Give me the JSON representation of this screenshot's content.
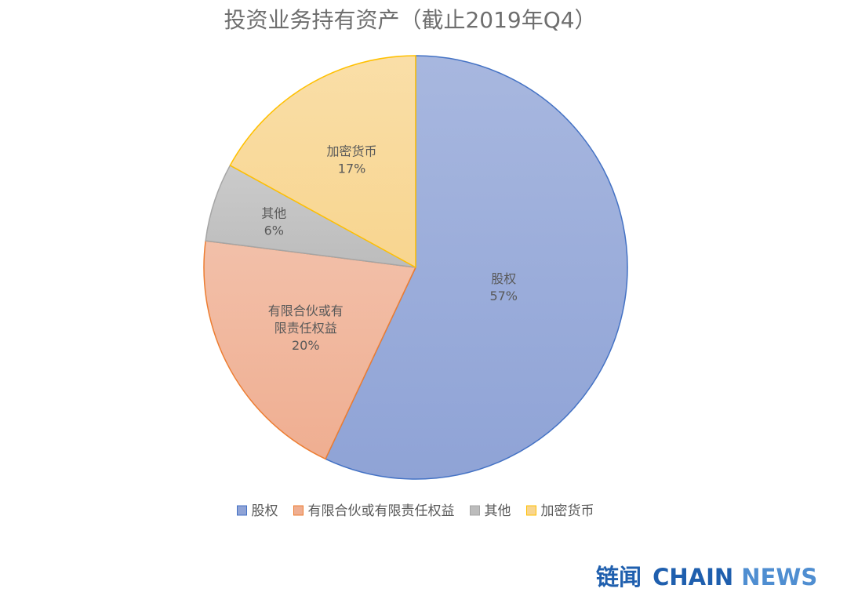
{
  "chart_data": {
    "type": "pie",
    "title": "投资业务持有资产（截止2019年Q4）",
    "categories": [
      "股权",
      "有限合伙或有限责任权益",
      "其他",
      "加密货币"
    ],
    "values": [
      57,
      20,
      6,
      17
    ],
    "value_labels": [
      "57%",
      "20%",
      "6%",
      "17%"
    ],
    "slice_label_lines": [
      [
        "股权"
      ],
      [
        "有限合伙或有",
        "限责任权益"
      ],
      [
        "其他"
      ],
      [
        "加密货币"
      ]
    ],
    "colors": [
      "#8fa3d6",
      "#efae91",
      "#bcbcbc",
      "#f8d58f"
    ],
    "edge_colors": [
      "#4472c4",
      "#ed7d31",
      "#a5a5a5",
      "#ffc000"
    ],
    "legend": {
      "position": "bottom",
      "labels": [
        "股权",
        "有限合伙或有限责任权益",
        "其他",
        "加密货币"
      ]
    },
    "start_angle_deg": 0,
    "direction": "clockwise"
  },
  "brand": {
    "chinese": "链闻",
    "chain": "CHAIN",
    "news": "NEWS",
    "colors": {
      "chinese": "#1f5fae",
      "chain": "#1f5fae",
      "news": "#4f8ed1"
    }
  }
}
